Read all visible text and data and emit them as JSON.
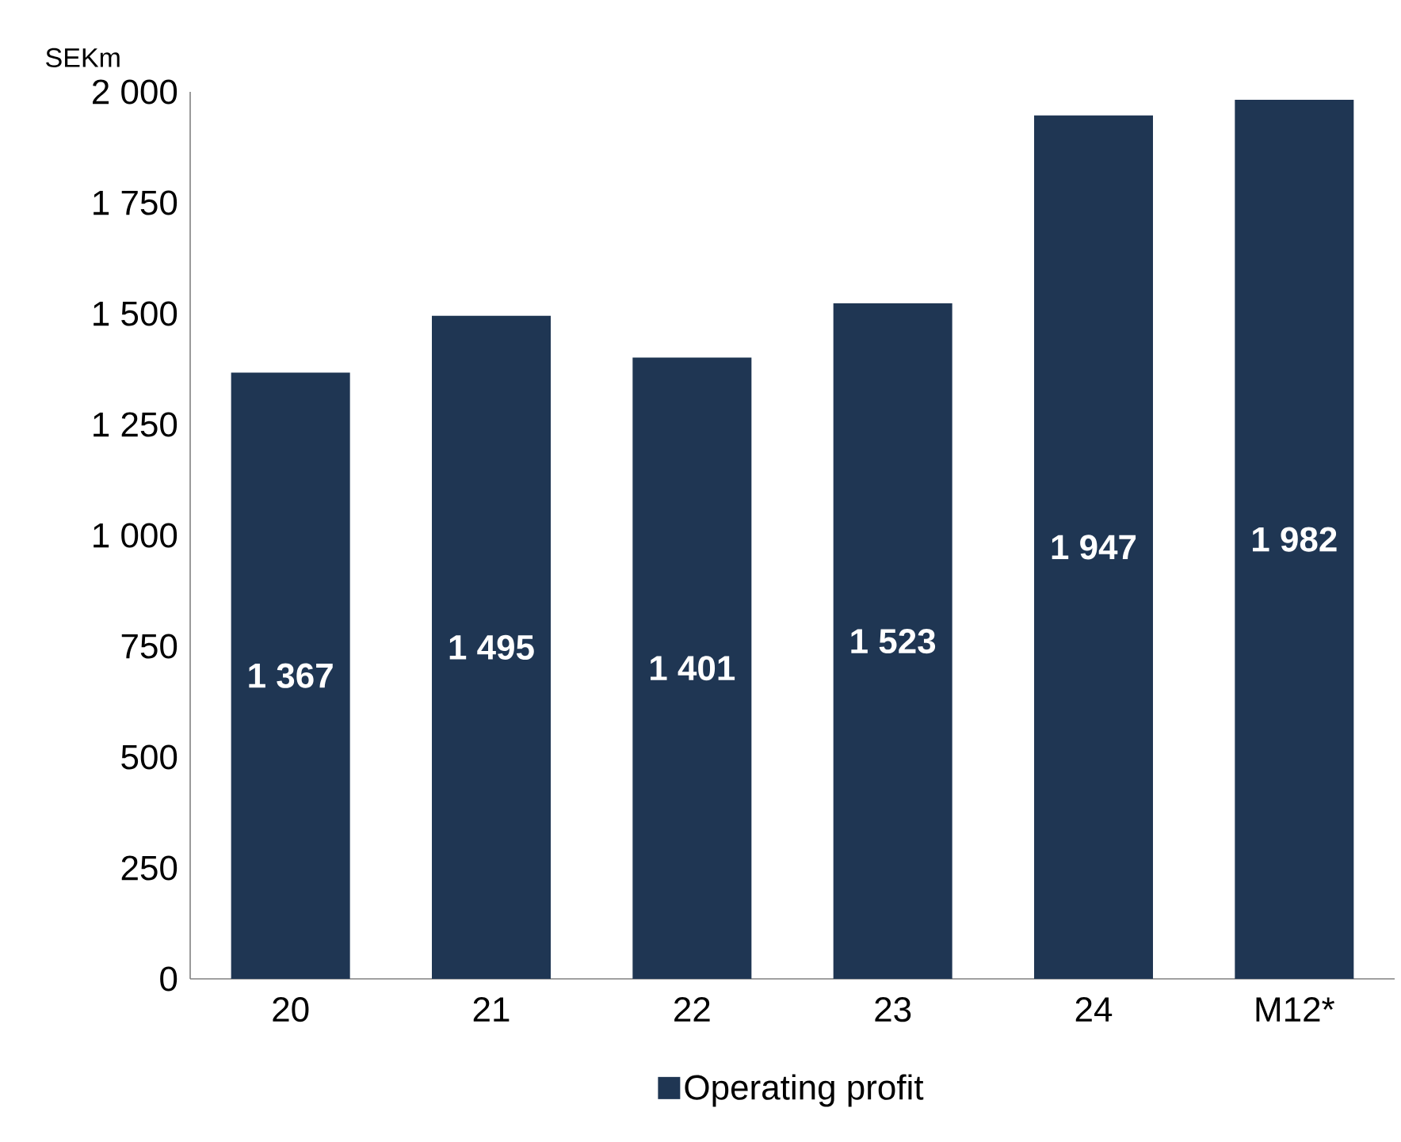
{
  "chart_data": {
    "type": "bar",
    "ylabel": "SEKm",
    "categories": [
      "20",
      "21",
      "22",
      "23",
      "24",
      "M12*"
    ],
    "series": [
      {
        "name": "Operating profit",
        "color": "#1f3653",
        "values": [
          1367,
          1495,
          1401,
          1523,
          1947,
          1982
        ],
        "value_labels": [
          "1 367",
          "1 495",
          "1 401",
          "1 523",
          "1 947",
          "1 982"
        ]
      }
    ],
    "ylim": [
      0,
      2000
    ],
    "yticks": [
      {
        "value": 0,
        "label": "0"
      },
      {
        "value": 250,
        "label": "250"
      },
      {
        "value": 500,
        "label": "500"
      },
      {
        "value": 750,
        "label": "750"
      },
      {
        "value": 1000,
        "label": "1 000"
      },
      {
        "value": 1250,
        "label": "1 250"
      },
      {
        "value": 1500,
        "label": "1 500"
      },
      {
        "value": 1750,
        "label": "1 750"
      },
      {
        "value": 2000,
        "label": "2 000"
      }
    ],
    "grid": false,
    "legend": "bottom"
  }
}
